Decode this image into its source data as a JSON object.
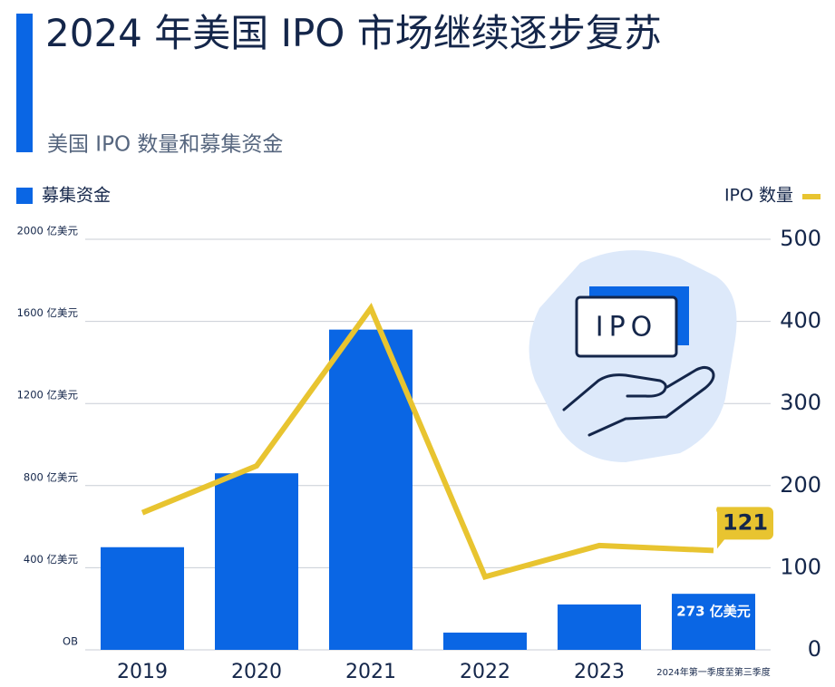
{
  "chart_data": {
    "type": "bar",
    "title": "2024 年美国 IPO 市场继续逐步复苏",
    "subtitle": "美国 IPO 数量和募集资金",
    "annotations": [
      "IPO"
    ],
    "categories": [
      "2019",
      "2020",
      "2021",
      "2022",
      "2023",
      "2024年第一季度至第三季度"
    ],
    "series": [
      {
        "name": "募集资金",
        "type": "bar",
        "axis": "y",
        "color": "#0a66e4",
        "values": [
          500,
          860,
          1560,
          84,
          221,
          273
        ],
        "value_labels": [
          null,
          null,
          null,
          null,
          null,
          "273 亿美元"
        ]
      },
      {
        "name": "IPO 数量",
        "type": "line",
        "axis": "y2",
        "color": "#e8c430",
        "values": [
          167,
          224,
          416,
          89,
          127,
          121
        ],
        "value_labels": [
          null,
          null,
          null,
          null,
          null,
          "121"
        ]
      }
    ],
    "ylim": [
      0,
      2000
    ],
    "yticks": [
      {
        "value": 0,
        "label": "OB"
      },
      {
        "value": 400,
        "label": "400 亿美元"
      },
      {
        "value": 800,
        "label": "800 亿美元"
      },
      {
        "value": 1200,
        "label": "1200 亿美元"
      },
      {
        "value": 1600,
        "label": "1600 亿美元"
      },
      {
        "value": 2000,
        "label": "2000 亿美元"
      }
    ],
    "y2lim": [
      0,
      500
    ],
    "y2ticks": [
      0,
      100,
      200,
      300,
      400,
      500
    ],
    "grid": true
  }
}
